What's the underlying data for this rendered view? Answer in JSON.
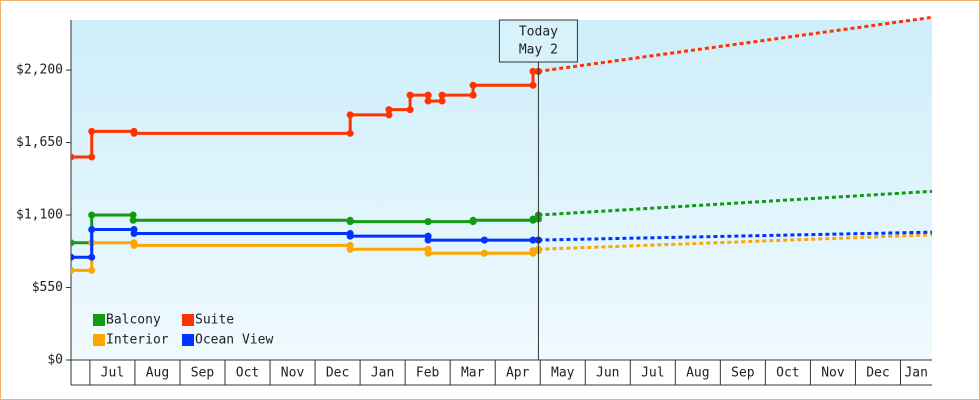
{
  "chart_data": {
    "type": "step",
    "xlim": [
      -0.42,
      18.7
    ],
    "xticks": [
      {
        "value": 0.5,
        "label": "Jul"
      },
      {
        "value": 1.5,
        "label": "Aug"
      },
      {
        "value": 2.5,
        "label": "Sep"
      },
      {
        "value": 3.5,
        "label": "Oct"
      },
      {
        "value": 4.5,
        "label": "Nov"
      },
      {
        "value": 5.5,
        "label": "Dec"
      },
      {
        "value": 6.5,
        "label": "Jan"
      },
      {
        "value": 7.5,
        "label": "Feb"
      },
      {
        "value": 8.5,
        "label": "Mar"
      },
      {
        "value": 9.5,
        "label": "Apr"
      },
      {
        "value": 10.5,
        "label": "May"
      },
      {
        "value": 11.5,
        "label": "Jun"
      },
      {
        "value": 12.5,
        "label": "Jul"
      },
      {
        "value": 13.5,
        "label": "Aug"
      },
      {
        "value": 14.5,
        "label": "Sep"
      },
      {
        "value": 15.5,
        "label": "Oct"
      },
      {
        "value": 16.5,
        "label": "Nov"
      },
      {
        "value": 17.5,
        "label": "Dec"
      },
      {
        "value": 18.5,
        "label": "Jan"
      }
    ],
    "ylim": [
      0,
      2580
    ],
    "yticks": [
      {
        "value": 0,
        "label": "$0"
      },
      {
        "value": 550,
        "label": "$550"
      },
      {
        "value": 1100,
        "label": "$1,100"
      },
      {
        "value": 1650,
        "label": "$1,650"
      },
      {
        "value": 2200,
        "label": "$2,200"
      }
    ],
    "today": {
      "x": 9.96,
      "label": [
        "Today",
        "May 2"
      ]
    },
    "series": [
      {
        "name": "Balcony",
        "color": "#129a12",
        "x": [
          -0.42,
          0.04,
          0.96,
          5.78,
          7.51,
          8.51,
          9.84,
          9.96
        ],
        "values": [
          890,
          1100,
          1060,
          1050,
          1050,
          1060,
          1070,
          1100
        ],
        "projection": {
          "x": [
            9.96,
            18.7
          ],
          "values": [
            1100,
            1280
          ]
        }
      },
      {
        "name": "Suite",
        "color": "#ff3300",
        "x": [
          -0.42,
          0.04,
          0.98,
          5.78,
          6.64,
          7.11,
          7.51,
          7.82,
          8.51,
          9.84,
          9.96
        ],
        "values": [
          1540,
          1735,
          1720,
          1860,
          1900,
          2010,
          1965,
          2010,
          2085,
          2190,
          2190
        ],
        "projection": {
          "x": [
            9.96,
            18.7
          ],
          "values": [
            2190,
            2600
          ]
        }
      },
      {
        "name": "Interior",
        "color": "#ffa500",
        "x": [
          -0.42,
          0.04,
          0.98,
          5.78,
          7.51,
          8.76,
          9.84,
          9.96
        ],
        "values": [
          680,
          890,
          870,
          840,
          810,
          810,
          830,
          840
        ],
        "projection": {
          "x": [
            9.96,
            18.7
          ],
          "values": [
            840,
            950
          ]
        }
      },
      {
        "name": "Ocean View",
        "color": "#0033ff",
        "x": [
          -0.42,
          0.04,
          0.98,
          5.78,
          7.51,
          8.76,
          9.84,
          9.96
        ],
        "values": [
          780,
          990,
          960,
          940,
          910,
          910,
          910,
          910
        ],
        "projection": {
          "x": [
            9.96,
            18.7
          ],
          "values": [
            910,
            970
          ]
        }
      }
    ]
  }
}
